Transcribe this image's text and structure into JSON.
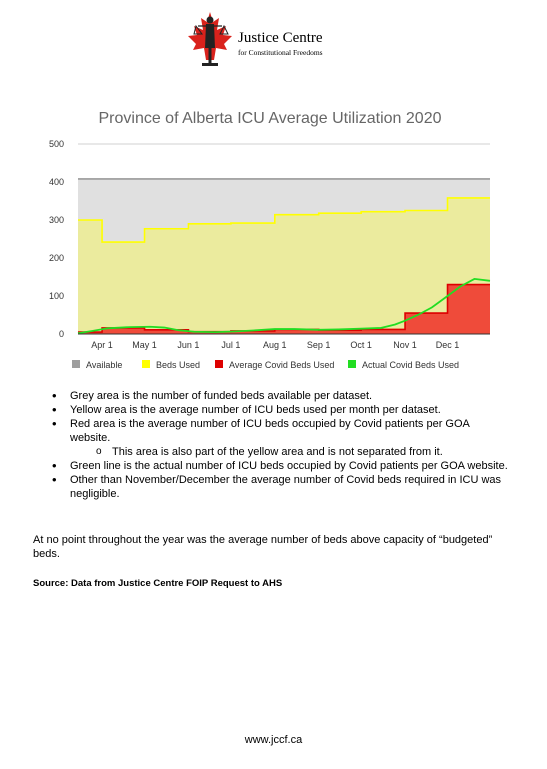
{
  "header": {
    "org_name": "Justice Centre",
    "org_tagline": "for Constitutional Freedoms"
  },
  "chart_data": {
    "type": "area",
    "title": "Province of Alberta ICU Average Utilization 2020",
    "xlabel": "",
    "ylabel": "",
    "ylim": [
      0,
      500
    ],
    "y_ticks": [
      0,
      100,
      200,
      300,
      400,
      500
    ],
    "x_tick_labels": [
      "Apr 1",
      "May 1",
      "Jun 1",
      "Jul 1",
      "Aug 1",
      "Sep 1",
      "Oct 1",
      "Nov 1",
      "Dec 1"
    ],
    "grid": true,
    "legend_position": "bottom",
    "series": [
      {
        "name": "Available",
        "color": "#999999",
        "fill": "#e0e0e0",
        "style": "step",
        "points": [
          [
            "Mar 15",
            408
          ],
          [
            "Dec 31",
            408
          ]
        ]
      },
      {
        "name": "Beds Used",
        "color": "#ffff00",
        "fill": "#ebeb9e",
        "style": "step",
        "points": [
          [
            "Mar 15",
            300
          ],
          [
            "Apr 1",
            242
          ],
          [
            "May 1",
            277
          ],
          [
            "Jun 1",
            290
          ],
          [
            "Jul 1",
            292
          ],
          [
            "Aug 1",
            314
          ],
          [
            "Sep 1",
            318
          ],
          [
            "Oct 1",
            322
          ],
          [
            "Nov 1",
            325
          ],
          [
            "Dec 1",
            358
          ],
          [
            "Dec 31",
            358
          ]
        ]
      },
      {
        "name": "Average Covid Beds Used",
        "color": "#dd0000",
        "fill": "#ef4b3a",
        "style": "step",
        "points": [
          [
            "Mar 15",
            5
          ],
          [
            "Apr 1",
            16
          ],
          [
            "May 1",
            11
          ],
          [
            "Jun 1",
            6
          ],
          [
            "Jul 1",
            8
          ],
          [
            "Aug 1",
            12
          ],
          [
            "Sep 1",
            10
          ],
          [
            "Oct 1",
            12
          ],
          [
            "Nov 1",
            55
          ],
          [
            "Dec 1",
            130
          ],
          [
            "Dec 31",
            130
          ]
        ]
      },
      {
        "name": "Actual Covid Beds Used",
        "color": "#22dd22",
        "style": "line",
        "points": [
          [
            "Mar 15",
            2
          ],
          [
            "Mar 25",
            8
          ],
          [
            "Apr 5",
            15
          ],
          [
            "Apr 20",
            18
          ],
          [
            "May 5",
            19
          ],
          [
            "May 15",
            17
          ],
          [
            "May 25",
            10
          ],
          [
            "Jun 5",
            6
          ],
          [
            "Jun 20",
            5
          ],
          [
            "Jul 5",
            7
          ],
          [
            "Jul 20",
            10
          ],
          [
            "Aug 1",
            13
          ],
          [
            "Aug 15",
            13
          ],
          [
            "Sep 1",
            11
          ],
          [
            "Sep 15",
            12
          ],
          [
            "Oct 1",
            14
          ],
          [
            "Oct 15",
            16
          ],
          [
            "Oct 25",
            25
          ],
          [
            "Nov 1",
            35
          ],
          [
            "Nov 10",
            50
          ],
          [
            "Nov 20",
            70
          ],
          [
            "Dec 1",
            100
          ],
          [
            "Dec 10",
            125
          ],
          [
            "Dec 20",
            145
          ],
          [
            "Dec 31",
            140
          ]
        ]
      }
    ]
  },
  "bullets": [
    "Grey area is the number of funded beds available per dataset.",
    "Yellow area is the average number of ICU beds used per month per dataset.",
    "Red area is the average number of ICU beds occupied by Covid patients per GOA website.",
    "Green line is the actual number of ICU beds occupied by Covid patients per GOA website.",
    "Other than November/December the average number of Covid beds required in ICU was negligible."
  ],
  "sub_bullet": "This area is also part of the yellow area and is not separated from it.",
  "paragraph": "At no point throughout the year was the average number of beds above capacity of “budgeted” beds.",
  "source": "Source: Data from Justice Centre FOIP Request to AHS",
  "footer": "www.jccf.ca"
}
